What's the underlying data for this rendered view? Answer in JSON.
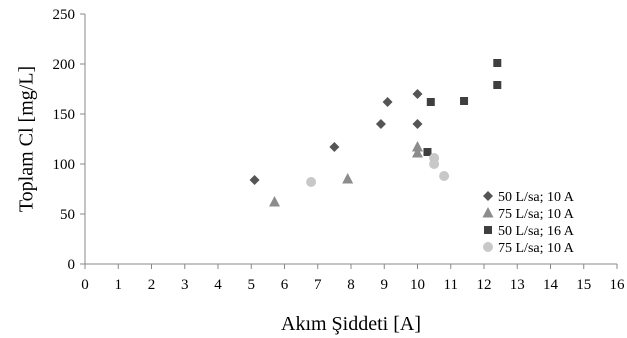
{
  "chart_data": {
    "type": "scatter",
    "title": "",
    "xlabel": "Akım Şiddeti [A]",
    "ylabel": "Toplam Cl [mg/L]",
    "xlim": [
      0,
      16
    ],
    "ylim": [
      0,
      250
    ],
    "x_ticks": [
      "0",
      "1",
      "2",
      "3",
      "4",
      "5",
      "6",
      "7",
      "8",
      "9",
      "10",
      "11",
      "12",
      "13",
      "14",
      "15",
      "16"
    ],
    "y_ticks": [
      "0",
      "50",
      "100",
      "150",
      "200",
      "250"
    ],
    "grid": false,
    "legend_position": "bottom-right",
    "series": [
      {
        "name": "50 L/sa; 10 A",
        "marker": "diamond",
        "color": "#555555",
        "points": [
          [
            5.1,
            84
          ],
          [
            7.5,
            117
          ],
          [
            8.9,
            140
          ],
          [
            9.1,
            162
          ],
          [
            10.0,
            170
          ],
          [
            10.0,
            140
          ]
        ]
      },
      {
        "name": "75 L/sa; 10 A",
        "marker": "triangle",
        "color": "#8c8c8c",
        "points": [
          [
            5.7,
            62
          ],
          [
            7.9,
            85
          ],
          [
            10.0,
            117
          ],
          [
            10.0,
            111
          ]
        ]
      },
      {
        "name": "50 L/sa; 16 A",
        "marker": "square",
        "color": "#3f3f3f",
        "points": [
          [
            10.3,
            112
          ],
          [
            10.4,
            162
          ],
          [
            11.4,
            163
          ],
          [
            12.4,
            201
          ],
          [
            12.4,
            179
          ]
        ]
      },
      {
        "name": "75 L/sa; 10 A",
        "marker": "circle",
        "color": "#c8c8c8",
        "points": [
          [
            6.8,
            82
          ],
          [
            10.5,
            106
          ],
          [
            10.5,
            100
          ],
          [
            10.8,
            88
          ]
        ]
      }
    ]
  }
}
